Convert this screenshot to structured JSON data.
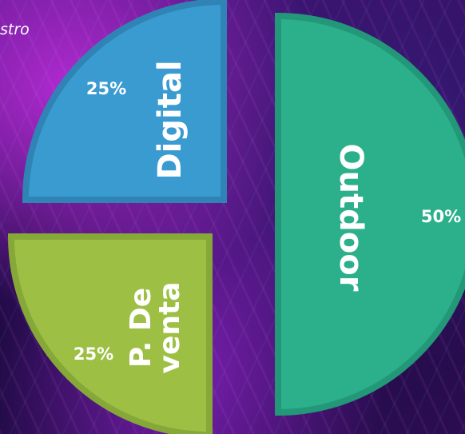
{
  "header": {
    "partial_text": "stro"
  },
  "chart_data": {
    "type": "pie",
    "exploded": true,
    "categories": [
      "Outdoor",
      "Digital",
      "P. De venta"
    ],
    "values": [
      50,
      25,
      25
    ],
    "value_labels": [
      "50%",
      "25%",
      "25%"
    ],
    "colors": [
      "#2bb08b",
      "#3a9bd1",
      "#9dc044"
    ],
    "border_colors": [
      "#239878",
      "#2f84b5",
      "#86a838"
    ]
  }
}
